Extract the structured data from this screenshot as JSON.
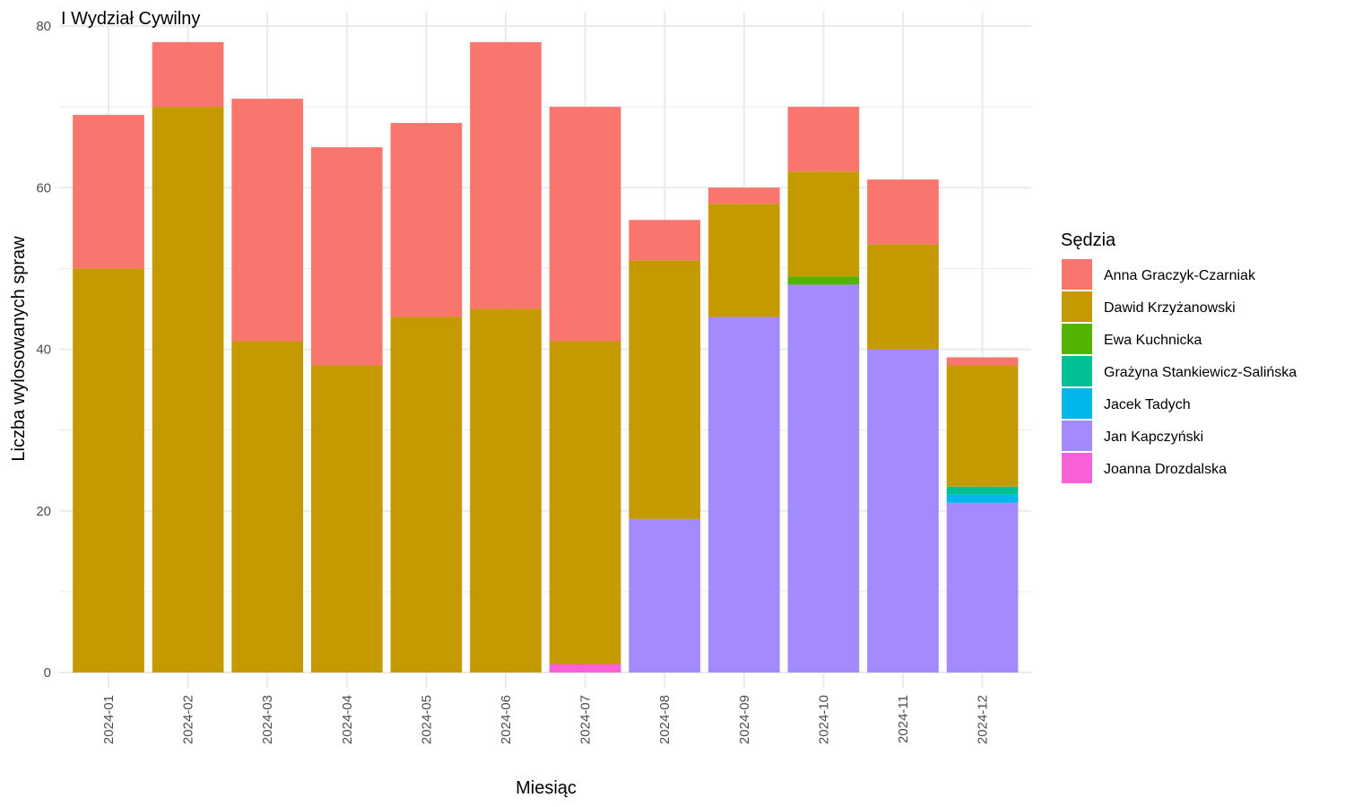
{
  "chart_data": {
    "type": "bar",
    "stacked": true,
    "title": "I Wydział Cywilny",
    "xlabel": "Miesiąc",
    "ylabel": "Liczba wylosowanych spraw",
    "ylim": [
      0,
      80
    ],
    "yticks": [
      0,
      20,
      40,
      60,
      80
    ],
    "grid": true,
    "legend_title": "Sędzia",
    "legend_position": "right",
    "categories": [
      "2024-01",
      "2024-02",
      "2024-03",
      "2024-04",
      "2024-05",
      "2024-06",
      "2024-07",
      "2024-08",
      "2024-09",
      "2024-10",
      "2024-11",
      "2024-12"
    ],
    "stack_order": [
      "Joanna Drozdalska",
      "Jan Kapczyński",
      "Jacek Tadych",
      "Grażyna Stankiewicz-Salińska",
      "Ewa Kuchnicka",
      "Dawid Krzyżanowski",
      "Anna Graczyk-Czarniak"
    ],
    "series": [
      {
        "name": "Anna Graczyk-Czarniak",
        "color": "#F8766D",
        "values": [
          19,
          8,
          30,
          27,
          24,
          33,
          29,
          5,
          2,
          8,
          8,
          1
        ]
      },
      {
        "name": "Dawid Krzyżanowski",
        "color": "#C49A00",
        "values": [
          50,
          70,
          41,
          38,
          44,
          45,
          40,
          32,
          14,
          13,
          13,
          15
        ]
      },
      {
        "name": "Ewa Kuchnicka",
        "color": "#53B400",
        "values": [
          0,
          0,
          0,
          0,
          0,
          0,
          0,
          0,
          0,
          1,
          0,
          0
        ]
      },
      {
        "name": "Grażyna Stankiewicz-Salińska",
        "color": "#00C094",
        "values": [
          0,
          0,
          0,
          0,
          0,
          0,
          0,
          0,
          0,
          0,
          0,
          1
        ]
      },
      {
        "name": "Jacek Tadych",
        "color": "#00B6EB",
        "values": [
          0,
          0,
          0,
          0,
          0,
          0,
          0,
          0,
          0,
          0,
          0,
          1
        ]
      },
      {
        "name": "Jan Kapczyński",
        "color": "#A58AFF",
        "values": [
          0,
          0,
          0,
          0,
          0,
          0,
          0,
          19,
          44,
          48,
          40,
          21
        ]
      },
      {
        "name": "Joanna Drozdalska",
        "color": "#FB61D7",
        "values": [
          0,
          0,
          0,
          0,
          0,
          0,
          1,
          0,
          0,
          0,
          0,
          0
        ]
      }
    ]
  }
}
